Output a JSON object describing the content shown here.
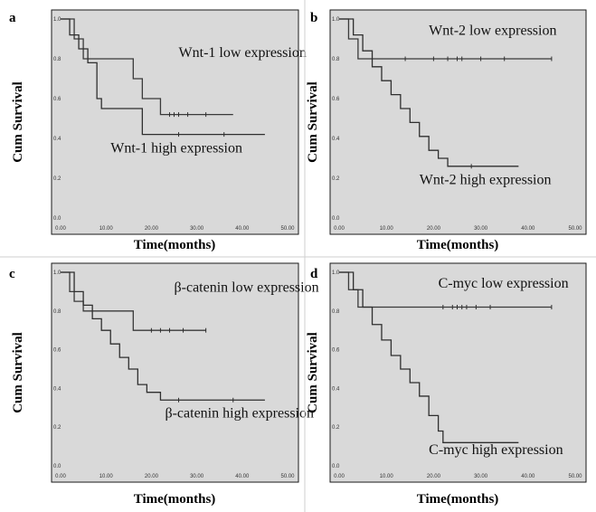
{
  "chart_data": [
    {
      "panel": "a",
      "type": "line",
      "subtype": "kaplan-meier",
      "xlabel": "Time(months)",
      "ylabel": "Cum Survival",
      "xlim": [
        0,
        50
      ],
      "ylim": [
        0,
        1
      ],
      "xticks": [
        "0.00",
        "10.00",
        "20.00",
        "30.00",
        "40.00",
        "50.00"
      ],
      "yticks": [
        "0.0",
        "0.2",
        "0.4",
        "0.6",
        "0.8",
        "1.0"
      ],
      "grid": false,
      "annotations": [
        {
          "text": "Wnt-1 low expression",
          "x": 26,
          "y": 0.81
        },
        {
          "text": "Wnt-1 high expression",
          "x": 11,
          "y": 0.33
        }
      ],
      "series": [
        {
          "color": "#3a3a3a",
          "x": [
            0,
            3,
            5,
            16,
            18,
            22,
            38
          ],
          "y": [
            1.0,
            0.9,
            0.8,
            0.7,
            0.6,
            0.52,
            0.52
          ],
          "censored": [
            [
              24,
              0.52
            ],
            [
              25,
              0.52
            ],
            [
              26,
              0.52
            ],
            [
              28,
              0.52
            ],
            [
              32,
              0.52
            ]
          ]
        },
        {
          "color": "#2f2f2f",
          "x": [
            0,
            2,
            4,
            6,
            8,
            9,
            18,
            45
          ],
          "y": [
            1.0,
            0.92,
            0.85,
            0.78,
            0.6,
            0.55,
            0.42,
            0.42
          ],
          "censored": [
            [
              26,
              0.42
            ],
            [
              36,
              0.42
            ]
          ]
        }
      ]
    },
    {
      "panel": "b",
      "type": "line",
      "subtype": "kaplan-meier",
      "xlabel": "Time(months)",
      "ylabel": "Cum Survival",
      "xlim": [
        0,
        50
      ],
      "ylim": [
        0,
        1
      ],
      "xticks": [
        "0.00",
        "10.00",
        "20.00",
        "30.00",
        "40.00",
        "50.00"
      ],
      "yticks": [
        "0.0",
        "0.2",
        "0.4",
        "0.6",
        "0.8",
        "1.0"
      ],
      "grid": false,
      "annotations": [
        {
          "text": "Wnt-2 low expression",
          "x": 19,
          "y": 0.92
        },
        {
          "text": "Wnt-2 high expression",
          "x": 17,
          "y": 0.17
        }
      ],
      "series": [
        {
          "color": "#3a3a3a",
          "x": [
            0,
            2,
            4,
            45
          ],
          "y": [
            1.0,
            0.9,
            0.8,
            0.8
          ],
          "censored": [
            [
              14,
              0.8
            ],
            [
              20,
              0.8
            ],
            [
              23,
              0.8
            ],
            [
              25,
              0.8
            ],
            [
              26,
              0.8
            ],
            [
              30,
              0.8
            ],
            [
              35,
              0.8
            ],
            [
              45,
              0.8
            ]
          ]
        },
        {
          "color": "#2f2f2f",
          "x": [
            0,
            3,
            5,
            7,
            9,
            11,
            13,
            15,
            17,
            19,
            21,
            23,
            38
          ],
          "y": [
            1.0,
            0.92,
            0.84,
            0.76,
            0.69,
            0.62,
            0.55,
            0.48,
            0.41,
            0.34,
            0.3,
            0.26,
            0.26
          ],
          "censored": [
            [
              28,
              0.26
            ]
          ]
        }
      ]
    },
    {
      "panel": "c",
      "type": "line",
      "subtype": "kaplan-meier",
      "xlabel": "Time(months)",
      "ylabel": "Cum Survival",
      "xlim": [
        0,
        50
      ],
      "ylim": [
        0,
        1
      ],
      "xticks": [
        "0.00",
        "10.00",
        "20.00",
        "30.00",
        "40.00",
        "50.00"
      ],
      "yticks": [
        "0.0",
        "0.2",
        "0.4",
        "0.6",
        "0.8",
        "1.0"
      ],
      "grid": false,
      "annotations": [
        {
          "text": "β-catenin low expression",
          "x": 25,
          "y": 0.9
        },
        {
          "text": "β-catenin high expression",
          "x": 23,
          "y": 0.25
        }
      ],
      "series": [
        {
          "color": "#3a3a3a",
          "x": [
            0,
            2,
            3,
            5,
            16,
            17,
            32
          ],
          "y": [
            1.0,
            0.9,
            0.85,
            0.8,
            0.7,
            0.7,
            0.7
          ],
          "censored": [
            [
              20,
              0.7
            ],
            [
              22,
              0.7
            ],
            [
              24,
              0.7
            ],
            [
              27,
              0.7
            ],
            [
              32,
              0.7
            ]
          ]
        },
        {
          "color": "#2f2f2f",
          "x": [
            0,
            3,
            5,
            7,
            9,
            11,
            13,
            15,
            17,
            19,
            22,
            45
          ],
          "y": [
            1.0,
            0.9,
            0.83,
            0.76,
            0.7,
            0.63,
            0.56,
            0.5,
            0.42,
            0.38,
            0.34,
            0.34
          ],
          "censored": [
            [
              26,
              0.34
            ],
            [
              38,
              0.34
            ]
          ]
        }
      ]
    },
    {
      "panel": "d",
      "type": "line",
      "subtype": "kaplan-meier",
      "xlabel": "Time(months)",
      "ylabel": "Cum Survival",
      "xlim": [
        0,
        50
      ],
      "ylim": [
        0,
        1
      ],
      "xticks": [
        "0.00",
        "10.00",
        "20.00",
        "30.00",
        "40.00",
        "50.00"
      ],
      "yticks": [
        "0.0",
        "0.2",
        "0.4",
        "0.6",
        "0.8",
        "1.0"
      ],
      "grid": false,
      "annotations": [
        {
          "text": "C-myc low expression",
          "x": 21,
          "y": 0.92
        },
        {
          "text": "C-myc high expression",
          "x": 19,
          "y": 0.06
        }
      ],
      "series": [
        {
          "color": "#3a3a3a",
          "x": [
            0,
            2,
            4,
            45
          ],
          "y": [
            1.0,
            0.91,
            0.82,
            0.82
          ],
          "censored": [
            [
              22,
              0.82
            ],
            [
              24,
              0.82
            ],
            [
              25,
              0.82
            ],
            [
              26,
              0.82
            ],
            [
              27,
              0.82
            ],
            [
              29,
              0.82
            ],
            [
              32,
              0.82
            ],
            [
              45,
              0.82
            ]
          ]
        },
        {
          "color": "#2f2f2f",
          "x": [
            0,
            3,
            5,
            7,
            9,
            11,
            13,
            15,
            17,
            19,
            21,
            22,
            38
          ],
          "y": [
            1.0,
            0.91,
            0.82,
            0.73,
            0.65,
            0.57,
            0.5,
            0.43,
            0.36,
            0.26,
            0.18,
            0.12,
            0.12
          ],
          "censored": []
        }
      ]
    }
  ]
}
